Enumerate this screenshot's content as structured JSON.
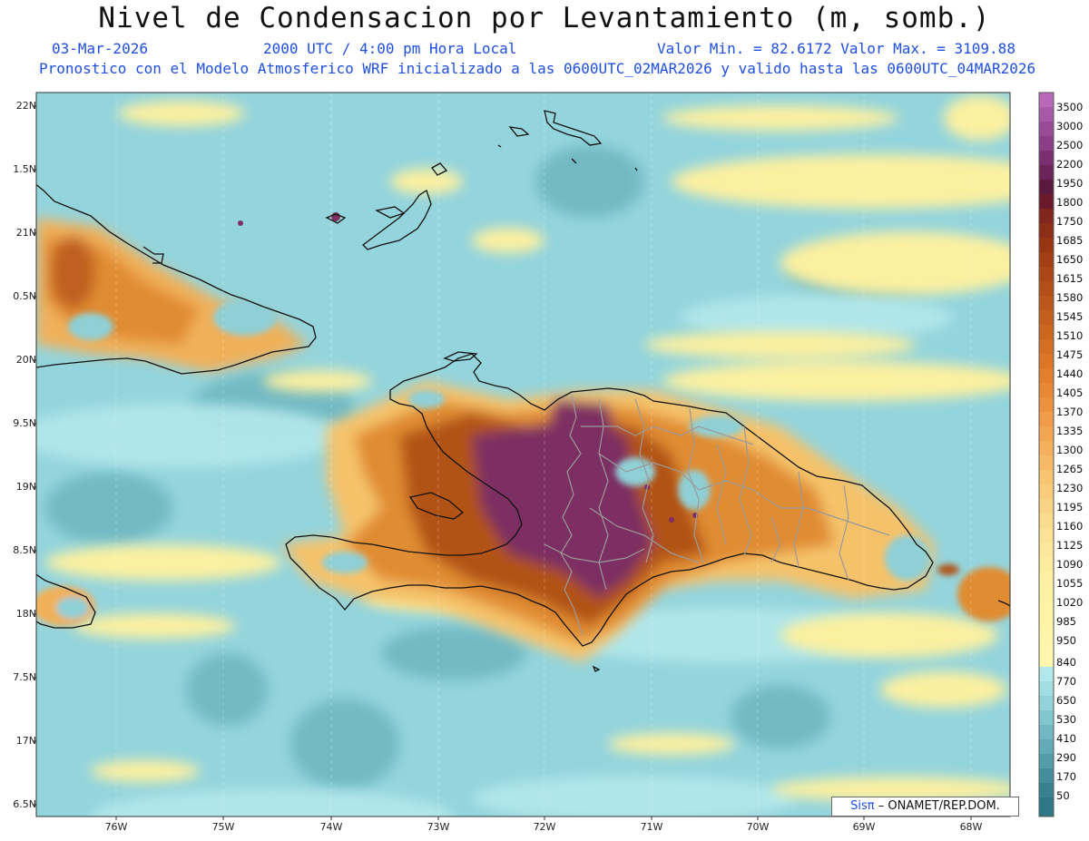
{
  "header": {
    "title": "Nivel de Condensacion por Levantamiento (m, somb.)",
    "date": "03-Mar-2026",
    "time": "2000 UTC / 4:00 pm Hora Local",
    "min_max": "Valor Min. = 82.6172  Valor Max. = 3109.88",
    "model_info": "Pronostico con el Modelo Atmosferico WRF inicializado a las 0600UTC_02MAR2026 y valido hasta las  0600UTC_04MAR2026"
  },
  "axes": {
    "lat_labels": [
      "22N",
      "1.5N",
      "21N",
      "0.5N",
      "20N",
      "9.5N",
      "19N",
      "8.5N",
      "18N",
      "7.5N",
      "17N",
      "6.5N"
    ],
    "lon_labels": [
      "76W",
      "75W",
      "74W",
      "73W",
      "72W",
      "71W",
      "70W",
      "69W",
      "68W"
    ]
  },
  "colorbar": {
    "labels": [
      "3500",
      "3000",
      "2500",
      "2200",
      "1950",
      "1800",
      "1750",
      "1685",
      "1650",
      "1615",
      "1580",
      "1545",
      "1510",
      "1475",
      "1440",
      "1405",
      "1370",
      "1335",
      "1300",
      "1265",
      "1230",
      "1195",
      "1160",
      "1125",
      "1090",
      "1055",
      "1020",
      "985",
      "950",
      "840",
      "770",
      "650",
      "530",
      "410",
      "290",
      "170",
      "50"
    ],
    "colors": {
      "purple_top": "#b060b0",
      "purple_dark": "#6a1a4a",
      "brown": "#9a3a14",
      "orange": "#e07a2a",
      "light_orange": "#f5c26a",
      "yellow": "#fdf3a6",
      "cyan_light": "#a8e4e8",
      "teal": "#7ac4cc",
      "teal_dark": "#2f7f8c"
    }
  },
  "map": {
    "ocean_color": "#94d4dc",
    "land_peak_color": "#7a2e6e",
    "coast_color": "#111111",
    "province_color": "#9a9a9a"
  },
  "credit": {
    "logo_text": "Sisπ",
    "label": "– ONAMET/REP.DOM."
  }
}
